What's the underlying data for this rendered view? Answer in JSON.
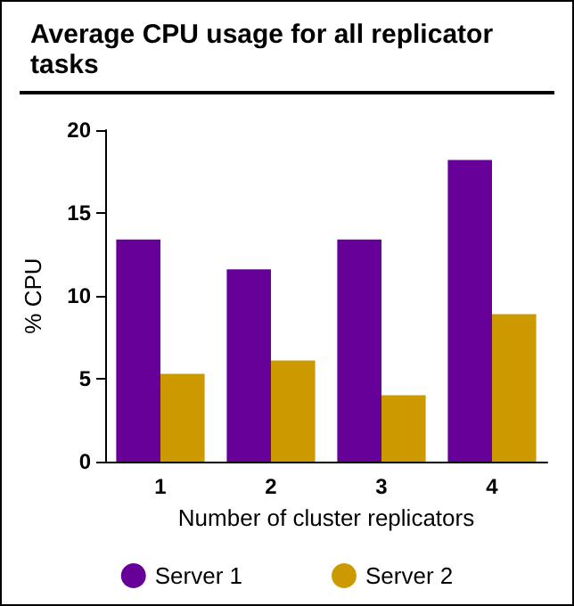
{
  "chart_data": {
    "type": "bar",
    "title": "Average CPU usage for all replicator tasks",
    "xlabel": "Number of cluster replicators",
    "ylabel": "% CPU",
    "categories": [
      "1",
      "2",
      "3",
      "4"
    ],
    "series": [
      {
        "name": "Server 1",
        "color": "#660099",
        "values": [
          13.4,
          11.6,
          13.4,
          18.2
        ]
      },
      {
        "name": "Server 2",
        "color": "#cc9900",
        "values": [
          5.3,
          6.1,
          4.0,
          8.9
        ]
      }
    ],
    "ylim": [
      0,
      20
    ],
    "yticks": [
      0,
      5,
      10,
      15,
      20
    ],
    "grid": false,
    "legend": "bottom"
  }
}
